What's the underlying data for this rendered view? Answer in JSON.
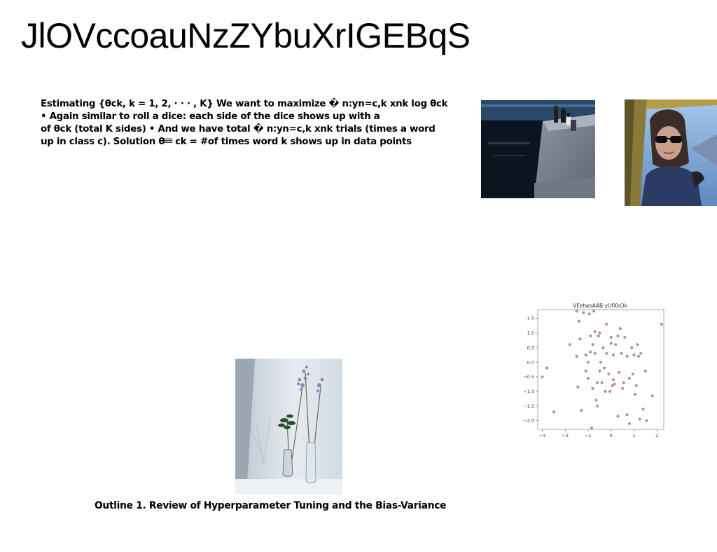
{
  "slide": {
    "title": "JlOVccoauNzZYbuXrIGEBqS",
    "body_lines": [
      "Estimating {θck, k = 1, 2, · · · , K} We want to maximize � n:yn=c,k xnk log θck",
      "• Again similar to roll a dice: each side of the dice shows up with a",
      "of θck (total K sides) • And we have total � n:yn=c,k xnk trials (times a word",
      "up in class c). Solution θ𝄘 ck = #of times word k shows up in data points"
    ],
    "caption": "Outline 1. Review of Hyperparameter Tuning and the Bias-Variance"
  },
  "images": {
    "waterfront": "photo of people sitting by a waterfront at night",
    "car": "photo of woman in sunglasses looking out of a car window",
    "vase": "photo of dried flowers in a glass vase"
  },
  "chart_data": {
    "type": "scatter",
    "title": "VEetwsAAB yUfXkOk",
    "xlim": [
      -3.2,
      2.3
    ],
    "ylim": [
      -2.3,
      1.8
    ],
    "xticks": [
      "−3",
      "−2",
      "−1",
      "0",
      "1",
      "2"
    ],
    "yticks": [
      "1.5",
      "1.0",
      "0.5",
      "0.0",
      "−0.5",
      "−1.0",
      "−1.5",
      "−2.0"
    ],
    "marker_color": "#9b6b86",
    "points": [
      [
        -3.0,
        -0.5
      ],
      [
        -2.8,
        -0.2
      ],
      [
        -2.5,
        -1.7
      ],
      [
        -1.8,
        0.6
      ],
      [
        -1.5,
        1.75
      ],
      [
        -1.5,
        0.2
      ],
      [
        -1.45,
        -0.85
      ],
      [
        -1.4,
        1.4
      ],
      [
        -1.35,
        0.8
      ],
      [
        -1.3,
        -1.65
      ],
      [
        -1.2,
        1.7
      ],
      [
        -1.1,
        -0.3
      ],
      [
        -1.1,
        0.25
      ],
      [
        -1.0,
        -0.55
      ],
      [
        -1.0,
        0.0
      ],
      [
        -0.95,
        1.65
      ],
      [
        -0.9,
        0.9
      ],
      [
        -0.9,
        0.35
      ],
      [
        -0.85,
        -2.25
      ],
      [
        -0.8,
        0.6
      ],
      [
        -0.8,
        -0.9
      ],
      [
        -0.75,
        1.75
      ],
      [
        -0.7,
        1.05
      ],
      [
        -0.7,
        0.3
      ],
      [
        -0.65,
        -1.3
      ],
      [
        -0.6,
        -0.7
      ],
      [
        -0.6,
        -1.5
      ],
      [
        -0.55,
        0.9
      ],
      [
        -0.5,
        1.0
      ],
      [
        -0.45,
        0.0
      ],
      [
        -0.4,
        -0.7
      ],
      [
        -0.35,
        0.5
      ],
      [
        -0.3,
        -0.2
      ],
      [
        -0.25,
        -1.0
      ],
      [
        -0.2,
        1.3
      ],
      [
        -0.2,
        0.3
      ],
      [
        -0.1,
        -0.4
      ],
      [
        -0.05,
        -1.0
      ],
      [
        0.0,
        0.65
      ],
      [
        0.0,
        0.85
      ],
      [
        0.05,
        -0.8
      ],
      [
        0.1,
        0.25
      ],
      [
        0.1,
        -0.6
      ],
      [
        0.15,
        -0.75
      ],
      [
        0.2,
        0.6
      ],
      [
        0.3,
        0.9
      ],
      [
        0.3,
        -1.85
      ],
      [
        0.35,
        -0.35
      ],
      [
        0.4,
        1.15
      ],
      [
        0.45,
        0.3
      ],
      [
        0.5,
        -0.9
      ],
      [
        0.55,
        -0.7
      ],
      [
        0.6,
        0.85
      ],
      [
        0.7,
        0.2
      ],
      [
        0.7,
        -1.8
      ],
      [
        0.8,
        -2.1
      ],
      [
        0.8,
        -0.55
      ],
      [
        0.9,
        0.5
      ],
      [
        0.95,
        -0.4
      ],
      [
        1.0,
        0.25
      ],
      [
        1.05,
        -1.1
      ],
      [
        1.1,
        -0.8
      ],
      [
        1.15,
        0.6
      ],
      [
        1.2,
        0.2
      ],
      [
        1.25,
        -1.95
      ],
      [
        1.3,
        0.3
      ],
      [
        1.4,
        -1.6
      ],
      [
        1.5,
        -0.3
      ],
      [
        1.55,
        -2.0
      ],
      [
        1.8,
        -1.15
      ],
      [
        2.2,
        1.3
      ],
      [
        -0.5,
        -0.3
      ]
    ]
  }
}
